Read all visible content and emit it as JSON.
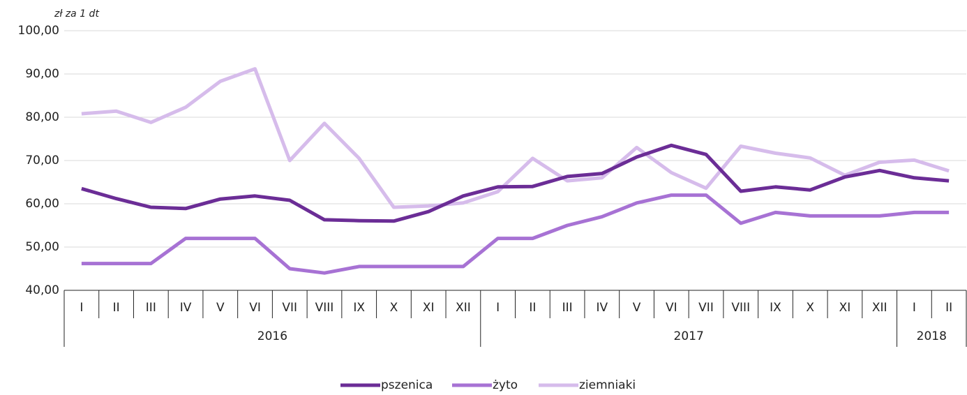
{
  "chart_data": {
    "type": "line",
    "unit_label": "zł za 1 dt",
    "categories": [
      "I",
      "II",
      "III",
      "IV",
      "V",
      "VI",
      "VII",
      "VIII",
      "IX",
      "X",
      "XI",
      "XII",
      "I",
      "II",
      "III",
      "IV",
      "V",
      "VI",
      "VII",
      "VIII",
      "IX",
      "X",
      "XI",
      "XII",
      "I",
      "II"
    ],
    "year_labels": [
      "2016",
      "2017",
      "2018"
    ],
    "ylim": [
      40,
      100
    ],
    "yticks": [
      {
        "value": 40,
        "label": "40,00"
      },
      {
        "value": 50,
        "label": "50,00"
      },
      {
        "value": 60,
        "label": "60,00"
      },
      {
        "value": 70,
        "label": "70,00"
      },
      {
        "value": 80,
        "label": "80,00"
      },
      {
        "value": 90,
        "label": "90,00"
      },
      {
        "value": 100,
        "label": "100,00"
      }
    ],
    "grid": true,
    "legend": "bottom",
    "series": [
      {
        "name": "pszenica",
        "color": "#6b2d96",
        "values": [
          63.5,
          61.2,
          59.2,
          58.9,
          61.1,
          61.8,
          60.8,
          56.3,
          56.1,
          56.0,
          58.2,
          61.8,
          63.9,
          64.0,
          66.3,
          67.0,
          70.8,
          73.5,
          71.4,
          62.9,
          63.9,
          63.2,
          66.2,
          67.7,
          66.0,
          65.3
        ]
      },
      {
        "name": "żyto",
        "color": "#a772d4",
        "values": [
          46.2,
          46.2,
          46.2,
          52.0,
          52.0,
          52.0,
          45.0,
          44.0,
          45.5,
          45.5,
          45.5,
          45.5,
          52.0,
          52.0,
          55.0,
          57.0,
          60.2,
          62.0,
          62.0,
          55.5,
          58.0,
          57.2,
          57.2,
          57.2,
          58.0,
          58.0
        ]
      },
      {
        "name": "ziemniaki",
        "color": "#d6bceb",
        "values": [
          80.8,
          81.4,
          78.8,
          82.3,
          88.3,
          91.2,
          70.0,
          78.6,
          70.5,
          59.2,
          59.5,
          60.2,
          62.8,
          70.5,
          65.3,
          66.0,
          73.0,
          67.2,
          63.6,
          73.3,
          71.7,
          70.6,
          66.6,
          69.6,
          70.1,
          67.6
        ]
      }
    ]
  }
}
